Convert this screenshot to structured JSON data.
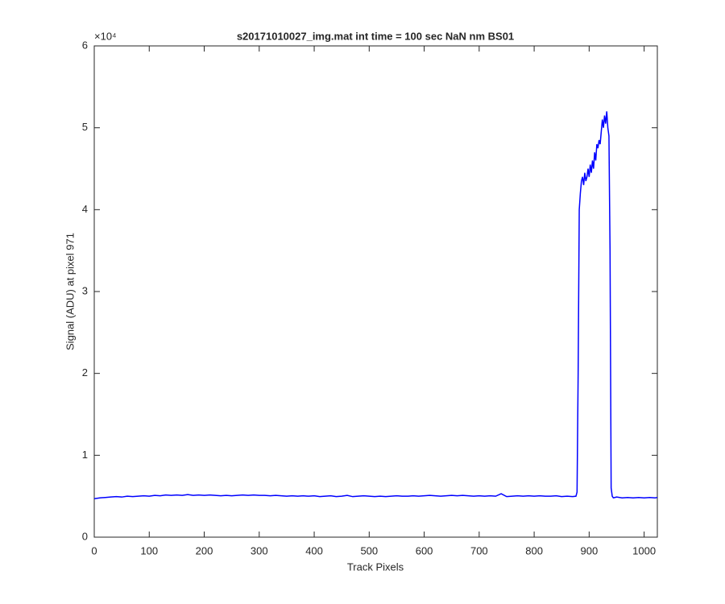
{
  "chart_data": {
    "type": "line",
    "title": "s20171010027_img.mat int time = 100 sec  NaN nm BS01",
    "x_label": "Track Pixels",
    "y_label": "Signal (ADU) at pixel 971",
    "y_multiplier": "×10⁴",
    "xlim": [
      0,
      1024
    ],
    "ylim": [
      0,
      60000
    ],
    "xticks": [
      0,
      100,
      200,
      300,
      400,
      500,
      600,
      700,
      800,
      900,
      1000
    ],
    "yticks": [
      {
        "value": 0,
        "label": "0"
      },
      {
        "value": 10000,
        "label": "1"
      },
      {
        "value": 20000,
        "label": "2"
      },
      {
        "value": 30000,
        "label": "3"
      },
      {
        "value": 40000,
        "label": "4"
      },
      {
        "value": 50000,
        "label": "5"
      },
      {
        "value": 60000,
        "label": "6"
      }
    ],
    "grid": false,
    "series": [
      {
        "color": "#0000ff",
        "x": [
          0,
          10,
          20,
          30,
          40,
          50,
          60,
          70,
          80,
          90,
          100,
          110,
          120,
          130,
          140,
          150,
          160,
          170,
          180,
          190,
          200,
          210,
          220,
          230,
          240,
          250,
          260,
          270,
          280,
          290,
          300,
          310,
          320,
          330,
          340,
          350,
          360,
          370,
          380,
          390,
          400,
          410,
          420,
          430,
          440,
          450,
          460,
          470,
          480,
          490,
          500,
          510,
          520,
          530,
          540,
          550,
          560,
          570,
          580,
          590,
          600,
          610,
          620,
          630,
          640,
          650,
          660,
          670,
          680,
          690,
          700,
          710,
          720,
          730,
          740,
          750,
          760,
          770,
          780,
          790,
          800,
          810,
          820,
          830,
          840,
          850,
          860,
          870,
          876,
          878,
          880,
          882,
          884,
          886,
          888,
          890,
          892,
          894,
          896,
          898,
          900,
          902,
          904,
          906,
          908,
          910,
          912,
          914,
          916,
          918,
          920,
          922,
          924,
          926,
          928,
          930,
          932,
          934,
          936,
          938,
          940,
          942,
          944,
          950,
          960,
          970,
          980,
          990,
          1000,
          1010,
          1020,
          1024
        ],
        "values": [
          4700,
          4800,
          4850,
          4900,
          4950,
          4900,
          5000,
          4950,
          5000,
          5050,
          5000,
          5100,
          5050,
          5150,
          5100,
          5150,
          5100,
          5200,
          5100,
          5150,
          5100,
          5150,
          5100,
          5050,
          5100,
          5050,
          5100,
          5150,
          5100,
          5150,
          5100,
          5100,
          5050,
          5100,
          5050,
          5000,
          5050,
          5000,
          5050,
          5000,
          5050,
          4950,
          5000,
          5050,
          4950,
          5000,
          5100,
          4950,
          5000,
          5050,
          5000,
          4950,
          5000,
          4950,
          5000,
          5050,
          5000,
          5000,
          5050,
          5000,
          5050,
          5100,
          5050,
          5000,
          5050,
          5100,
          5050,
          5100,
          5050,
          5000,
          5050,
          5000,
          5050,
          5000,
          5300,
          4950,
          5000,
          5050,
          5000,
          5050,
          5000,
          5050,
          5000,
          5000,
          5050,
          4950,
          5000,
          4950,
          5000,
          5500,
          20000,
          40000,
          42000,
          43500,
          44000,
          43000,
          44500,
          43500,
          44000,
          45000,
          44000,
          45500,
          44500,
          46000,
          45000,
          47000,
          46000,
          48000,
          47500,
          48500,
          48000,
          49500,
          51000,
          50000,
          51500,
          50500,
          52000,
          50000,
          49000,
          35000,
          6000,
          5000,
          4800,
          4900,
          4800,
          4850,
          4800,
          4850,
          4800,
          4850,
          4800,
          4850
        ]
      }
    ]
  }
}
